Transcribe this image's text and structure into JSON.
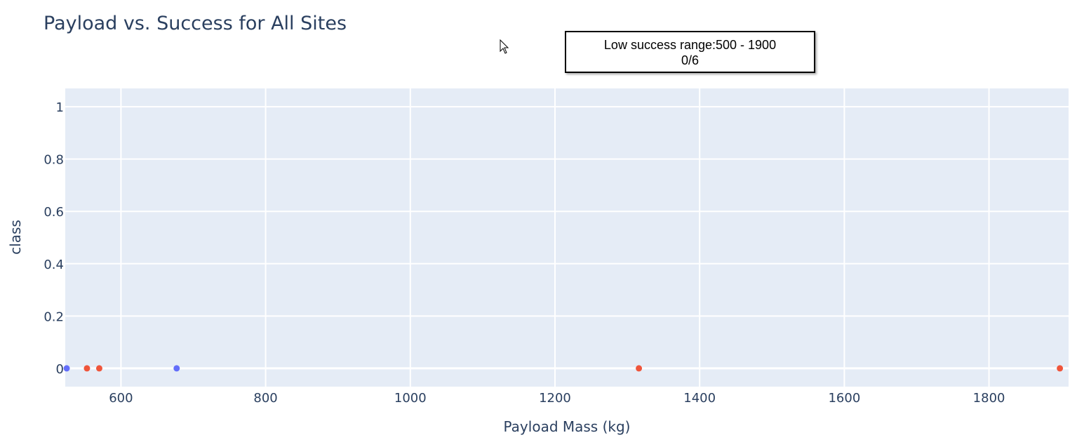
{
  "chart_data": {
    "type": "scatter",
    "title": "Payload vs. Success for All Sites",
    "xlabel": "Payload Mass (kg)",
    "ylabel": "class",
    "xlim": [
      523,
      1910
    ],
    "ylim": [
      -0.07,
      1.07
    ],
    "x_ticks": [
      600,
      800,
      1000,
      1200,
      1400,
      1600,
      1800
    ],
    "y_ticks": [
      0,
      0.2,
      0.4,
      0.6,
      0.8,
      1
    ],
    "grid": true,
    "background": "#e5ecf6",
    "series": [
      {
        "color": "#636efa",
        "points": [
          {
            "x": 525,
            "y": 0
          },
          {
            "x": 677,
            "y": 0
          }
        ]
      },
      {
        "color": "#ef553b",
        "points": [
          {
            "x": 553,
            "y": 0
          },
          {
            "x": 570,
            "y": 0
          },
          {
            "x": 1316,
            "y": 0
          },
          {
            "x": 1898,
            "y": 0
          }
        ]
      }
    ]
  },
  "annotation": {
    "line1": "Low success range:500 - 1900",
    "line2": "0/6"
  }
}
